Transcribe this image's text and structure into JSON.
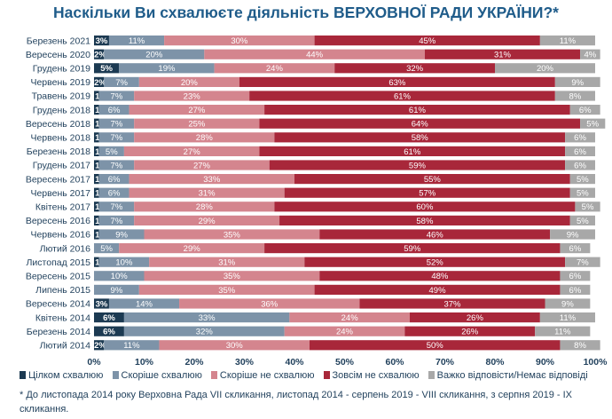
{
  "chart_data": {
    "type": "bar",
    "orientation": "horizontal",
    "stacked": true,
    "title": "Наскільки Ви схвалюєте діяльність ВЕРХОВНОЇ РАДИ УКРАЇНИ?*",
    "categories": [
      "Березень 2021",
      "Вересень 2020",
      "Грудень 2019",
      "Червень 2019",
      "Травень 2019",
      "Грудень 2018",
      "Вересень 2018",
      "Червень 2018",
      "Березень 2018",
      "Грудень 2017",
      "Вересень 2017",
      "Червень 2017",
      "Квітень 2017",
      "Вересень 2016",
      "Червень 2016",
      "Лютий 2016",
      "Листопад 2015",
      "Вересень 2015",
      "Липень 2015",
      "Вересень 2014",
      "Квітень 2014",
      "Березень 2014",
      "Лютий 2014"
    ],
    "series": [
      {
        "name": "Цілком схвалюю",
        "color": "#1c3a52",
        "values": [
          3,
          2,
          5,
          2,
          1,
          1,
          1,
          1,
          1,
          1,
          1,
          1,
          1,
          1,
          1,
          0,
          1,
          0,
          0,
          3,
          6,
          6,
          2
        ]
      },
      {
        "name": "Скоріше схвалюю",
        "color": "#7d93a8",
        "values": [
          11,
          20,
          19,
          7,
          7,
          6,
          7,
          7,
          5,
          7,
          6,
          6,
          7,
          7,
          9,
          5,
          10,
          10,
          9,
          14,
          33,
          32,
          11
        ]
      },
      {
        "name": "Скоріше не схвалюю",
        "color": "#d4858e",
        "values": [
          30,
          44,
          24,
          20,
          23,
          27,
          25,
          28,
          27,
          27,
          33,
          31,
          28,
          29,
          35,
          29,
          31,
          35,
          35,
          36,
          24,
          24,
          30
        ]
      },
      {
        "name": "Зовсім не схвалюю",
        "color": "#a8273a",
        "values": [
          45,
          31,
          32,
          63,
          61,
          61,
          64,
          58,
          61,
          59,
          55,
          57,
          60,
          58,
          46,
          59,
          52,
          48,
          49,
          37,
          26,
          26,
          50
        ]
      },
      {
        "name": "Важко відповісти/Немає відповіді",
        "color": "#a8a8a8",
        "values": [
          11,
          4,
          20,
          9,
          8,
          6,
          5,
          6,
          6,
          6,
          5,
          5,
          5,
          5,
          9,
          6,
          7,
          6,
          6,
          9,
          11,
          11,
          8
        ]
      }
    ],
    "labels": [
      [
        "3%",
        "11%",
        "30%",
        "45%",
        "11%"
      ],
      [
        "2%",
        "20%",
        "44%",
        "31%",
        "4%"
      ],
      [
        "5%",
        "19%",
        "24%",
        "32%",
        "20%"
      ],
      [
        "2%",
        "7%",
        "20%",
        "63%",
        "9%"
      ],
      [
        "1%",
        "7%",
        "23%",
        "61%",
        "8%"
      ],
      [
        "1%",
        "6%",
        "27%",
        "61%",
        "6%"
      ],
      [
        "1%",
        "7%",
        "25%",
        "64%",
        "5%"
      ],
      [
        "1%",
        "7%",
        "28%",
        "58%",
        "6%"
      ],
      [
        "1%",
        "5%",
        "27%",
        "61%",
        "6%"
      ],
      [
        "1%",
        "7%",
        "27%",
        "59%",
        "6%"
      ],
      [
        "1%",
        "6%",
        "33%",
        "55%",
        "5%"
      ],
      [
        "1%",
        "6%",
        "31%",
        "57%",
        "5%"
      ],
      [
        "1%",
        "7%",
        "28%",
        "60%",
        "5%"
      ],
      [
        "1%",
        "7%",
        "29%",
        "58%",
        "5%"
      ],
      [
        "1%",
        "9%",
        "35%",
        "46%",
        "9%"
      ],
      [
        "",
        "5%",
        "29%",
        "59%",
        "6%"
      ],
      [
        "1%",
        "10%",
        "31%",
        "52%",
        "7%"
      ],
      [
        "",
        "10%",
        "35%",
        "48%",
        "6%"
      ],
      [
        "",
        "9%",
        "35%",
        "49%",
        "6%"
      ],
      [
        "3%",
        "14%",
        "36%",
        "37%",
        "9%"
      ],
      [
        "6%",
        "33%",
        "24%",
        "26%",
        "11%"
      ],
      [
        "6%",
        "32%",
        "24%",
        "26%",
        "11%"
      ],
      [
        "2%",
        "11%",
        "30%",
        "50%",
        "8%"
      ]
    ],
    "x_ticks": [
      "0%",
      "10%",
      "20%",
      "30%",
      "40%",
      "50%",
      "60%",
      "70%",
      "80%",
      "90%",
      "100%"
    ],
    "xlim": [
      0,
      100
    ],
    "legend_position": "bottom"
  },
  "footnote": "* До листопада 2014 року Верховна Рада VII скликання, листопад 2014 - серпень 2019 - VIII скликання, з серпня 2019 - IX скликання."
}
